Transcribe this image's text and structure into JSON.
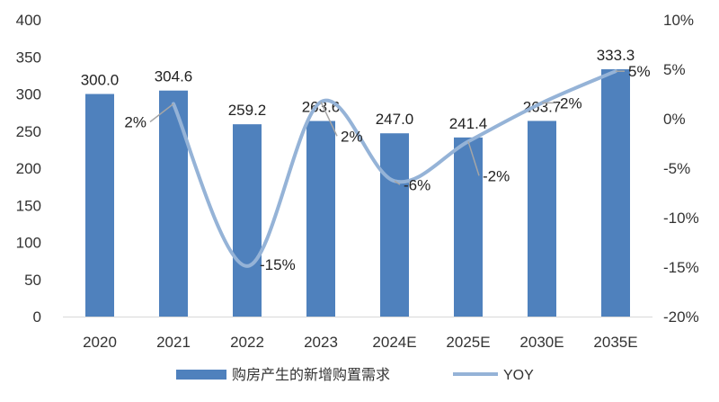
{
  "chart_data": {
    "type": "bar",
    "categories": [
      "2020",
      "2021",
      "2022",
      "2023",
      "2024E",
      "2025E",
      "2030E",
      "2035E"
    ],
    "series": [
      {
        "name": "购房产生的新增购置需求",
        "type": "bar",
        "axis": "left",
        "values": [
          300.0,
          304.6,
          259.2,
          263.6,
          247.0,
          241.4,
          263.7,
          333.3
        ],
        "labels": [
          "300.0",
          "304.6",
          "259.2",
          "263.6",
          "247.0",
          "241.4",
          "263.7",
          "333.3"
        ],
        "color": "#4f81bd"
      },
      {
        "name": "YOY",
        "type": "line",
        "axis": "right",
        "values": [
          null,
          1.5,
          -14.9,
          1.7,
          -6.3,
          -2.3,
          1.6,
          4.8
        ],
        "labels": [
          "",
          "2%",
          "-15%",
          "2%",
          "-6%",
          "-2%",
          "2%",
          "5%"
        ],
        "color": "#95b3d7"
      }
    ],
    "y_left": {
      "min": 0,
      "max": 400,
      "step": 50,
      "ticks": [
        "0",
        "50",
        "100",
        "150",
        "200",
        "250",
        "300",
        "350",
        "400"
      ]
    },
    "y_right": {
      "min": -20,
      "max": 10,
      "step": 5,
      "ticks": [
        "-20%",
        "-15%",
        "-10%",
        "-5%",
        "0%",
        "5%",
        "10%"
      ]
    },
    "grid": false,
    "legend_position": "bottom"
  }
}
